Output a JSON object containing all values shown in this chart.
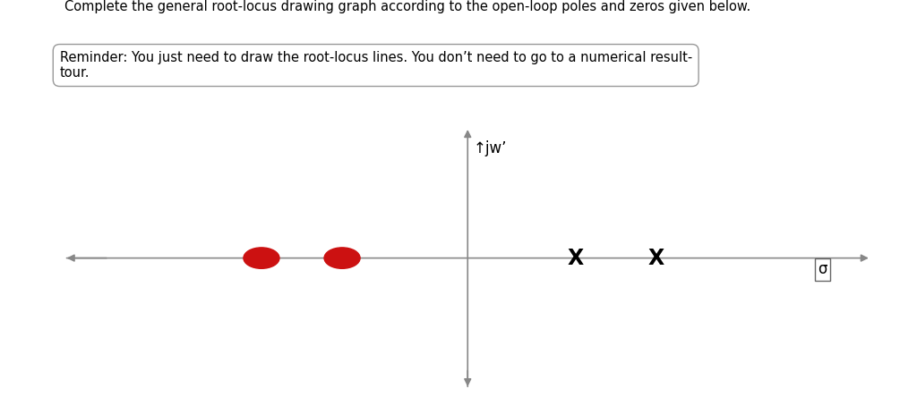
{
  "title_line1": "Complete the general root-locus drawing graph according to the open-loop poles and zeros given below.",
  "title_line2": "Reminder: You just need to draw the root-locus lines. You don’t need to go to a numerical result-",
  "title_line3": "tour.",
  "poles": [
    1.2,
    2.1
  ],
  "zeros": [
    -1.4,
    -2.3
  ],
  "axis_color": "#888888",
  "pole_color": "#000000",
  "zero_color": "#cc1111",
  "jw_label": "↑jw’",
  "sigma_label": "σ",
  "xlim": [
    -4.5,
    4.5
  ],
  "ylim": [
    -2.5,
    2.5
  ],
  "fig_width": 10.24,
  "fig_height": 4.44,
  "dpi": 100
}
